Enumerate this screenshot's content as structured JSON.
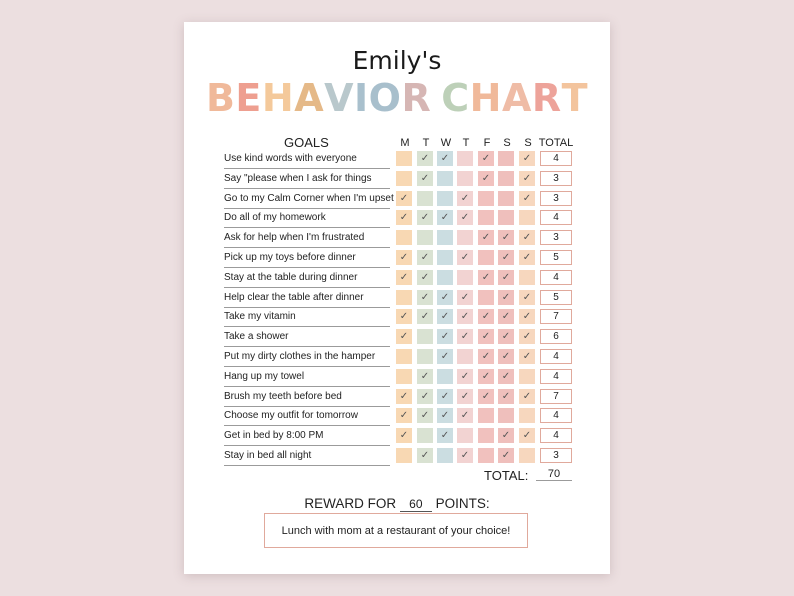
{
  "sheet": {
    "name": "Emily's",
    "title_letters": [
      {
        "ch": "B",
        "color": "#f0b99a"
      },
      {
        "ch": "E",
        "color": "#ee9f90"
      },
      {
        "ch": "H",
        "color": "#f4c99b"
      },
      {
        "ch": "A",
        "color": "#e5b988"
      },
      {
        "ch": "V",
        "color": "#b9c8cc"
      },
      {
        "ch": "I",
        "color": "#a9c0cd"
      },
      {
        "ch": "O",
        "color": "#a8bfcc"
      },
      {
        "ch": "R",
        "color": "#d6b6b4"
      },
      {
        "ch": " ",
        "color": "#ffffff"
      },
      {
        "ch": "C",
        "color": "#bdd0b8"
      },
      {
        "ch": "H",
        "color": "#f0b99a"
      },
      {
        "ch": "A",
        "color": "#efbca6"
      },
      {
        "ch": "R",
        "color": "#eda39a"
      },
      {
        "ch": "T",
        "color": "#f3c49d"
      }
    ],
    "goals_header": "GOALS",
    "days": [
      "M",
      "T",
      "W",
      "T",
      "F",
      "S",
      "S"
    ],
    "day_colors": [
      "#f8d8b3",
      "#d9e2d2",
      "#cbdde1",
      "#f2d3d2",
      "#f1c1be",
      "#efbfbc",
      "#f7d7be"
    ],
    "total_header": "TOTAL",
    "check_glyph": "✓",
    "rows": [
      {
        "goal": "Use kind words with everyone",
        "checks": [
          0,
          1,
          1,
          0,
          1,
          0,
          1
        ],
        "total": "4"
      },
      {
        "goal": "Say \"please when I ask for things",
        "checks": [
          0,
          1,
          0,
          0,
          1,
          0,
          1
        ],
        "total": "3"
      },
      {
        "goal": "Go to my Calm Corner when I'm upset",
        "checks": [
          1,
          0,
          0,
          1,
          0,
          0,
          1
        ],
        "total": "3"
      },
      {
        "goal": "Do all of my homework",
        "checks": [
          1,
          1,
          1,
          1,
          0,
          0,
          0
        ],
        "total": "4"
      },
      {
        "goal": "Ask for help when I'm frustrated",
        "checks": [
          0,
          0,
          0,
          0,
          1,
          1,
          1
        ],
        "total": "3"
      },
      {
        "goal": "Pick up my toys before dinner",
        "checks": [
          1,
          1,
          0,
          1,
          0,
          1,
          1
        ],
        "total": "5"
      },
      {
        "goal": "Stay at the table during dinner",
        "checks": [
          1,
          1,
          0,
          0,
          1,
          1,
          0
        ],
        "total": "4"
      },
      {
        "goal": "Help clear the table after dinner",
        "checks": [
          0,
          1,
          1,
          1,
          0,
          1,
          1
        ],
        "total": "5"
      },
      {
        "goal": "Take my vitamin",
        "checks": [
          1,
          1,
          1,
          1,
          1,
          1,
          1
        ],
        "total": "7"
      },
      {
        "goal": "Take a shower",
        "checks": [
          1,
          0,
          1,
          1,
          1,
          1,
          1
        ],
        "total": "6"
      },
      {
        "goal": "Put my dirty clothes in the hamper",
        "checks": [
          0,
          0,
          1,
          0,
          1,
          1,
          1
        ],
        "total": "4"
      },
      {
        "goal": "Hang up my towel",
        "checks": [
          0,
          1,
          0,
          1,
          1,
          1,
          0
        ],
        "total": "4"
      },
      {
        "goal": "Brush my teeth before bed",
        "checks": [
          1,
          1,
          1,
          1,
          1,
          1,
          1
        ],
        "total": "7"
      },
      {
        "goal": "Choose my outfit for tomorrow",
        "checks": [
          1,
          1,
          1,
          1,
          0,
          0,
          0
        ],
        "total": "4"
      },
      {
        "goal": "Get in bed by 8:00 PM",
        "checks": [
          1,
          0,
          1,
          0,
          0,
          1,
          1
        ],
        "total": "4"
      },
      {
        "goal": "Stay in bed all night",
        "checks": [
          0,
          1,
          0,
          1,
          0,
          1,
          0
        ],
        "total": "3"
      }
    ],
    "grand_total_label": "TOTAL:",
    "grand_total": "70",
    "reward_prefix": "REWARD FOR",
    "reward_points": "60",
    "reward_suffix": "POINTS:",
    "reward_text": "Lunch with mom at a restaurant of your choice!"
  }
}
